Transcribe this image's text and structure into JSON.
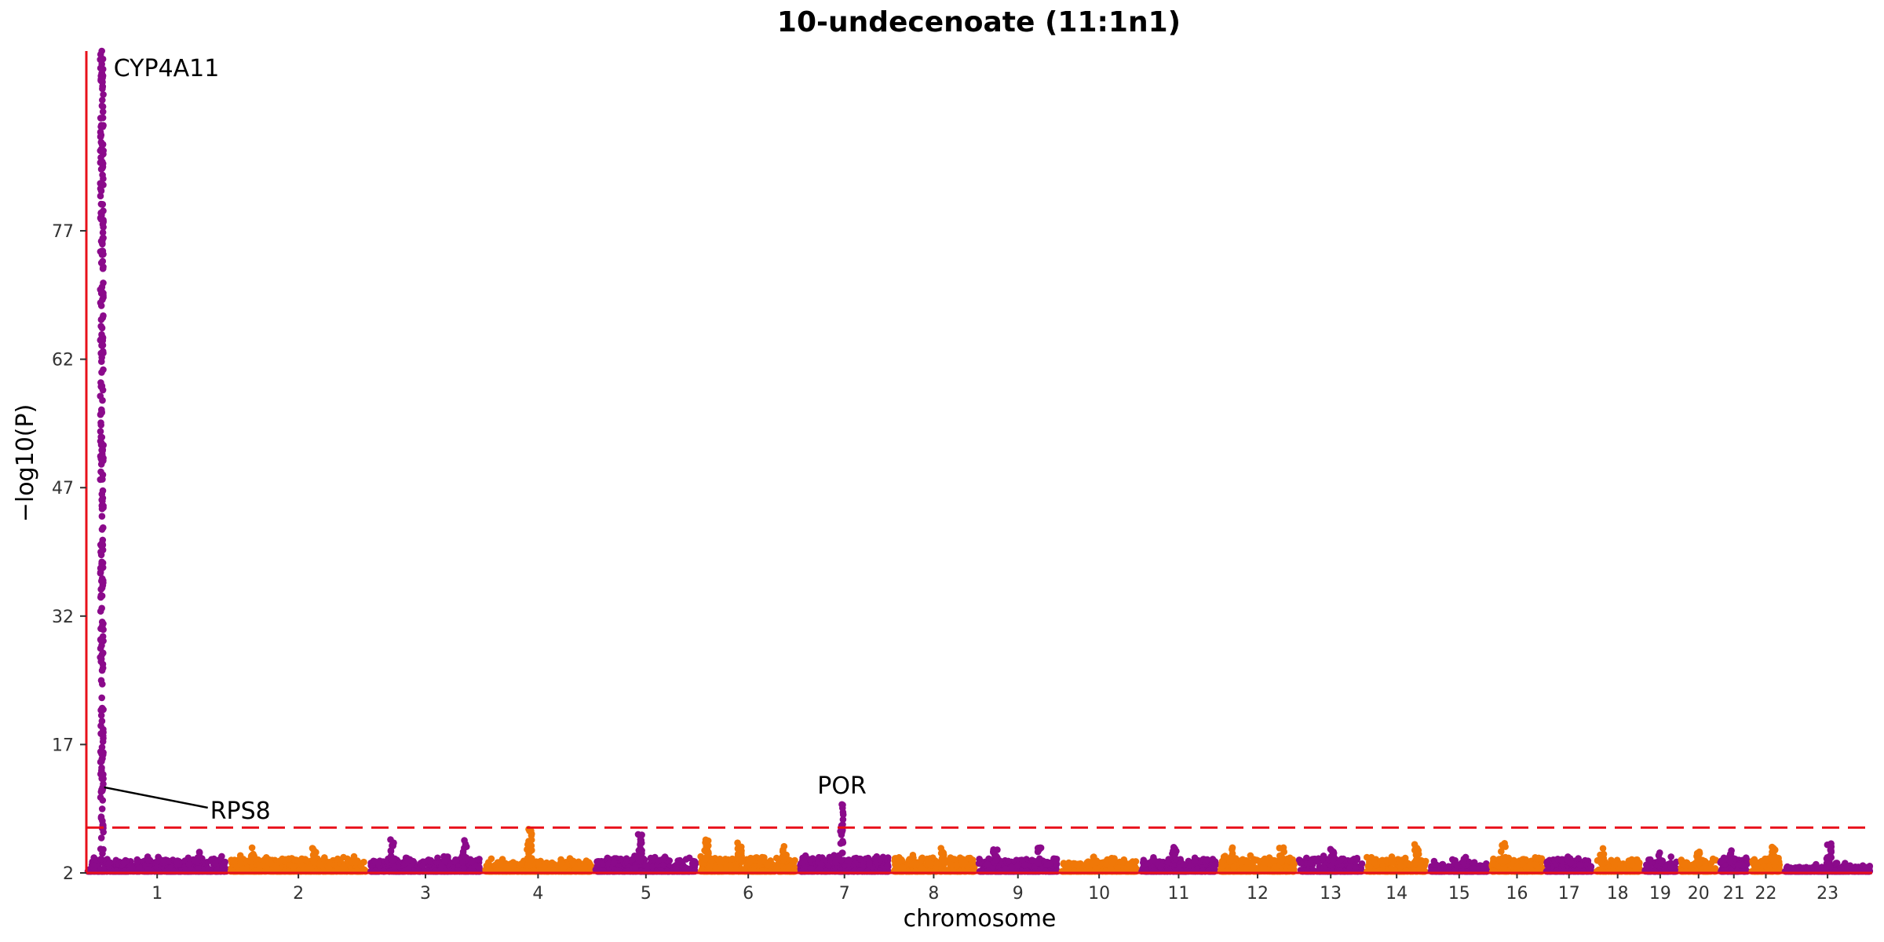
{
  "chart_data": {
    "type": "scatter",
    "subtype": "manhattan",
    "title": "10-undecenoate (11:1n1)",
    "xlabel": "chromosome",
    "ylabel": "−log10(P)",
    "ylim": [
      2,
      98
    ],
    "yticks": [
      2,
      17,
      32,
      47,
      62,
      77
    ],
    "significance_threshold": 7.3,
    "colors": {
      "odd": "#8B0A8B",
      "even": "#F07808",
      "axis": "#E8101A",
      "threshold": "#E8101A",
      "text": "#000000"
    },
    "chromosomes": [
      {
        "label": "1",
        "length": 249,
        "base": 3.2,
        "peaks": [
          {
            "pos": 25,
            "max": 98,
            "dense": true
          },
          {
            "pos": 200,
            "max": 4.5
          }
        ]
      },
      {
        "label": "2",
        "length": 243,
        "base": 3.3,
        "peaks": [
          {
            "pos": 40,
            "max": 5.0
          },
          {
            "pos": 150,
            "max": 5.0
          }
        ]
      },
      {
        "label": "3",
        "length": 198,
        "base": 3.2,
        "peaks": [
          {
            "pos": 40,
            "max": 6.0
          },
          {
            "pos": 170,
            "max": 6.0
          }
        ]
      },
      {
        "label": "4",
        "length": 191,
        "base": 3.0,
        "peaks": [
          {
            "pos": 80,
            "max": 7.3
          }
        ]
      },
      {
        "label": "5",
        "length": 181,
        "base": 3.3,
        "peaks": [
          {
            "pos": 80,
            "max": 7.0
          }
        ]
      },
      {
        "label": "6",
        "length": 171,
        "base": 3.3,
        "peaks": [
          {
            "pos": 10,
            "max": 6.3
          },
          {
            "pos": 70,
            "max": 6.0
          },
          {
            "pos": 150,
            "max": 6.0
          }
        ]
      },
      {
        "label": "7",
        "length": 159,
        "base": 3.3,
        "peaks": [
          {
            "pos": 75,
            "max": 10.0,
            "dense": true
          }
        ]
      },
      {
        "label": "8",
        "length": 146,
        "base": 3.3,
        "peaks": [
          {
            "pos": 90,
            "max": 5.0
          }
        ]
      },
      {
        "label": "9",
        "length": 141,
        "base": 3.2,
        "peaks": [
          {
            "pos": 30,
            "max": 5.5
          },
          {
            "pos": 110,
            "max": 5.0
          }
        ]
      },
      {
        "label": "10",
        "length": 135,
        "base": 3.0,
        "peaks": [
          {
            "pos": 60,
            "max": 4.5
          }
        ]
      },
      {
        "label": "11",
        "length": 135,
        "base": 3.2,
        "peaks": [
          {
            "pos": 60,
            "max": 5.2
          }
        ]
      },
      {
        "label": "12",
        "length": 133,
        "base": 3.3,
        "peaks": [
          {
            "pos": 20,
            "max": 5.0
          },
          {
            "pos": 110,
            "max": 5.0
          }
        ]
      },
      {
        "label": "13",
        "length": 114,
        "base": 3.3,
        "peaks": [
          {
            "pos": 60,
            "max": 5.0
          }
        ]
      },
      {
        "label": "14",
        "length": 107,
        "base": 3.2,
        "peaks": [
          {
            "pos": 90,
            "max": 5.5
          }
        ]
      },
      {
        "label": "15",
        "length": 102,
        "base": 2.8,
        "peaks": [
          {
            "pos": 60,
            "max": 4.0
          }
        ]
      },
      {
        "label": "16",
        "length": 90,
        "base": 3.2,
        "peaks": [
          {
            "pos": 20,
            "max": 5.5
          }
        ]
      },
      {
        "label": "17",
        "length": 81,
        "base": 3.2,
        "peaks": [
          {
            "pos": 40,
            "max": 4.5
          }
        ]
      },
      {
        "label": "18",
        "length": 78,
        "base": 3.1,
        "peaks": [
          {
            "pos": 10,
            "max": 5.0
          }
        ]
      },
      {
        "label": "19",
        "length": 59,
        "base": 3.2,
        "peaks": [
          {
            "pos": 30,
            "max": 4.5
          }
        ]
      },
      {
        "label": "20",
        "length": 63,
        "base": 3.1,
        "peaks": [
          {
            "pos": 30,
            "max": 4.5
          }
        ]
      },
      {
        "label": "21",
        "length": 48,
        "base": 3.3,
        "peaks": [
          {
            "pos": 20,
            "max": 4.8
          }
        ]
      },
      {
        "label": "22",
        "length": 51,
        "base": 3.3,
        "peaks": [
          {
            "pos": 40,
            "max": 5.5
          }
        ]
      },
      {
        "label": "23",
        "length": 155,
        "base": 2.6,
        "peaks": [
          {
            "pos": 80,
            "max": 6.0
          }
        ]
      }
    ],
    "annotations": [
      {
        "label": "CYP4A11",
        "chromosome": "1",
        "pos": 25,
        "y": 96
      },
      {
        "label": "RPS8",
        "chromosome": "1",
        "pos": 25,
        "y": 12
      },
      {
        "label": "POR",
        "chromosome": "7",
        "pos": 75,
        "y": 10
      }
    ]
  }
}
